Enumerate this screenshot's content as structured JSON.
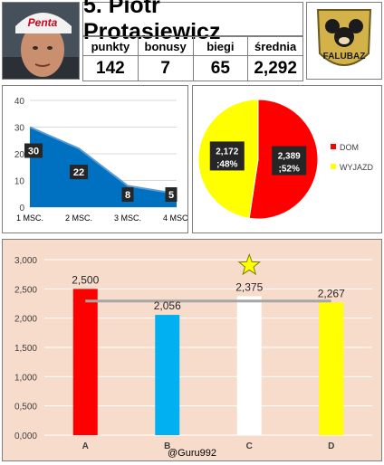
{
  "header": {
    "title": "5. Piotr Protasiewicz",
    "stats_headers": [
      "punkty",
      "bonusy",
      "biegi",
      "średnia"
    ],
    "stats_values": [
      "142",
      "7",
      "65",
      "2,292"
    ],
    "photo_brand": "Penta",
    "logo_text": "FALUBAZ"
  },
  "chart_data": [
    {
      "type": "area",
      "categories": [
        "1 MSC.",
        "2 MSC.",
        "3 MSC.",
        "4 MSC."
      ],
      "values": [
        30,
        22,
        8,
        5
      ],
      "data_labels": [
        "30",
        "22",
        "8",
        "5"
      ],
      "ylim": [
        0,
        40
      ],
      "yticks": [
        "0",
        "10",
        "20",
        "30",
        "40"
      ],
      "grid": true,
      "color": "#0070c0"
    },
    {
      "type": "pie",
      "slices": [
        {
          "name": "DOM",
          "value": 2.389,
          "label": "2,389 ;52%",
          "color": "#ff0000"
        },
        {
          "name": "WYJAZD",
          "value": 2.172,
          "label": "2,172 ;48%",
          "color": "#ffff00"
        }
      ],
      "legend_position": "right"
    },
    {
      "type": "bar",
      "categories": [
        "A",
        "B",
        "C",
        "D"
      ],
      "values": [
        2.5,
        2.056,
        2.375,
        2.267
      ],
      "data_labels": [
        "2,500",
        "2,056",
        "2,375",
        "2,267"
      ],
      "colors": [
        "#ff0000",
        "#00b0f0",
        "#ffffff",
        "#ffff00"
      ],
      "average_line": 2.292,
      "star_on": "C",
      "ylim": [
        0,
        3
      ],
      "yticks": [
        "0,000",
        "0,500",
        "1,000",
        "1,500",
        "2,000",
        "2,500",
        "3,000"
      ],
      "grid": true
    }
  ],
  "footer": {
    "credit": "@Guru992"
  }
}
